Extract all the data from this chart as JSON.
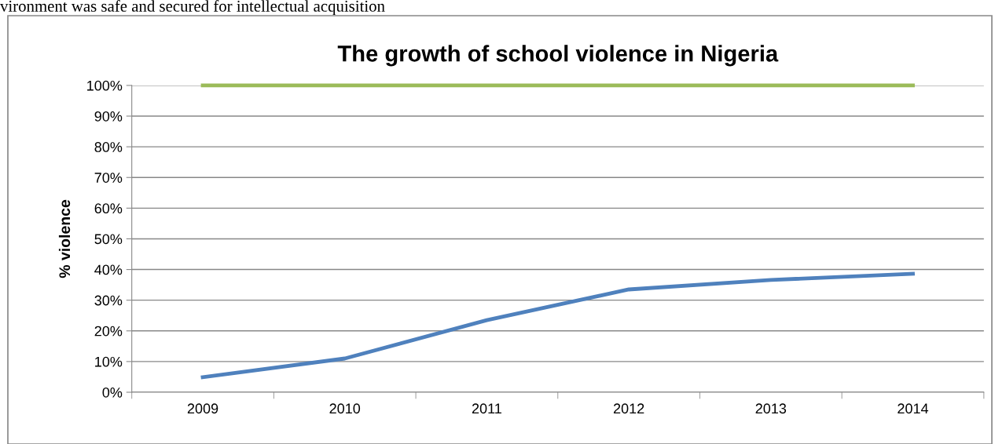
{
  "chart_data": {
    "type": "line",
    "title": "The growth of school violence in Nigeria",
    "ylabel": "% violence",
    "annotations": [
      "vironment was safe and secured for intellectual acquisition"
    ],
    "categories": [
      "2009",
      "2010",
      "2011",
      "2012",
      "2013",
      "2014"
    ],
    "series": [
      {
        "color": "#4f81bd",
        "values": [
          0.049,
          0.11,
          0.235,
          0.335,
          0.366,
          0.386
        ]
      },
      {
        "color": "#9bbb59",
        "values": [
          1.0,
          1.0,
          1.0,
          1.0,
          1.0,
          1.0
        ]
      }
    ],
    "ylim": [
      0,
      1
    ],
    "yticks": [
      {
        "value": 0,
        "label": "0%"
      },
      {
        "value": 0.1,
        "label": "10%"
      },
      {
        "value": 0.2,
        "label": "20%"
      },
      {
        "value": 0.3,
        "label": "30%"
      },
      {
        "value": 0.4,
        "label": "40%"
      },
      {
        "value": 0.5,
        "label": "50%"
      },
      {
        "value": 0.6,
        "label": "60%"
      },
      {
        "value": 0.7,
        "label": "70%"
      },
      {
        "value": 0.8,
        "label": "80%"
      },
      {
        "value": 0.9,
        "label": "90%"
      },
      {
        "value": 1,
        "label": "100%"
      }
    ],
    "grid": "y",
    "marker": "none",
    "line_style": "solid"
  }
}
